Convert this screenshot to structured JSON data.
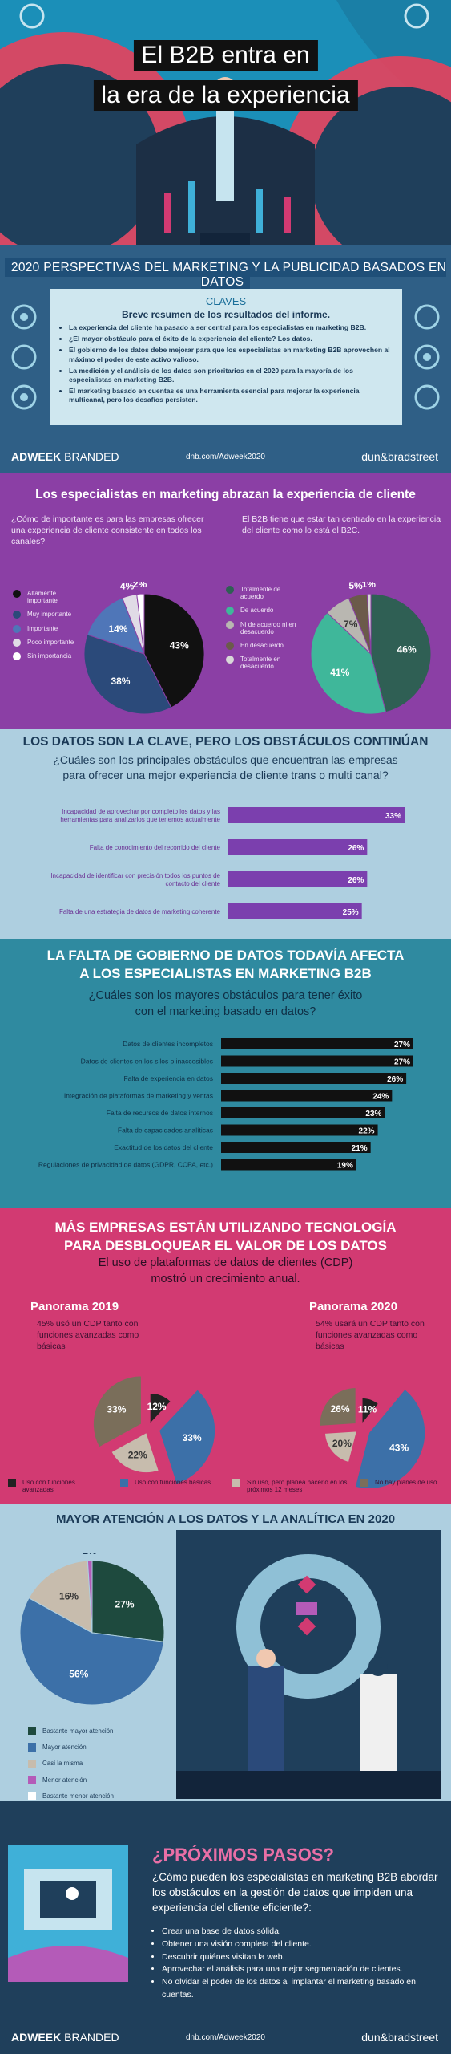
{
  "hero": {
    "title_line1": "El B2B entra en",
    "title_line2": "la era de la experiencia"
  },
  "perspectives": {
    "heading": "2020 PERSPECTIVAS DEL MARKETING Y LA PUBLICIDAD BASADOS EN DATOS",
    "claves_title": "CLAVES",
    "claves_subtitle": "Breve resumen de los resultados del informe.",
    "bullets": [
      "La experiencia del cliente ha pasado a ser central para los especialistas en marketing B2B.",
      "¿El mayor obstáculo para el éxito de la experiencia del cliente? Los datos.",
      "El gobierno de los datos debe mejorar para que los especialistas en marketing B2B aprovechen al máximo el poder de este activo valioso.",
      "La medición y el análisis de los datos son prioritarios en el 2020 para la mayoría de los especialistas en marketing B2B.",
      "El marketing basado en cuentas es una herramienta esencial para mejorar la experiencia multicanal, pero los desafíos persisten."
    ]
  },
  "brand": {
    "adweek_bold": "ADWEEK",
    "adweek_light": "BRANDED",
    "url": "dnb.com/Adweek2020",
    "dnb": "dun&bradstreet"
  },
  "experience": {
    "heading": "Los especialistas en marketing abrazan la experiencia de cliente",
    "q1": "¿Cómo de importante es para las empresas ofrecer una experiencia de cliente consistente en todos los canales?",
    "q2": "El B2B tiene que estar tan centrado en la experiencia del cliente como lo está el B2C."
  },
  "obstacles": {
    "heading": "LOS DATOS SON LA CLAVE, PERO LOS OBSTÁCULOS CONTINÚAN",
    "sub_line1": "¿Cuáles son los principales obstáculos que encuentran las empresas",
    "sub_line2": "para ofrecer una mejor experiencia de cliente trans o multi canal?"
  },
  "governance": {
    "heading_line1": "LA FALTA DE GOBIERNO DE DATOS TODAVÍA AFECTA",
    "heading_line2": "A LOS ESPECIALISTAS EN MARKETING B2B",
    "sub_line1": "¿Cuáles son los mayores obstáculos para tener éxito",
    "sub_line2": "con el marketing basado en datos?"
  },
  "cdp": {
    "heading_line1": "MÁS EMPRESAS ESTÁN UTILIZANDO TECNOLOGÍA",
    "heading_line2": "PARA DESBLOQUEAR EL VALOR DE LOS DATOS",
    "sub_line1": "El uso de plataformas de datos de clientes (CDP)",
    "sub_line2": "mostró un crecimiento anual.",
    "p2019_title": "Panorama 2019",
    "p2019_desc": "45% usó un CDP tanto con funciones avanzadas como básicas",
    "p2020_title": "Panorama 2020",
    "p2020_desc": "54% usará un CDP tanto con funciones avanzadas como básicas"
  },
  "attention": {
    "heading": "MAYOR ATENCIÓN A LOS DATOS Y LA ANALÍTICA EN 2020"
  },
  "next": {
    "heading": "¿PRÓXIMOS PASOS?",
    "question": "¿Cómo pueden los especialistas en marketing B2B abordar los obstáculos en la gestión de datos que impiden una experiencia del cliente eficiente?:",
    "steps": [
      "Crear una base de datos sólida.",
      "Obtener una visión completa del cliente.",
      "Descubrir quiénes visitan la web.",
      "Aprovechar el análisis para una mejor segmentación de clientes.",
      "No olvidar el poder de los datos al implantar el marketing basado en cuentas."
    ]
  },
  "chart_data": [
    {
      "type": "pie",
      "id": "importance",
      "labels": [
        "Altamente importante",
        "Muy importante",
        "Importante",
        "Poco importante",
        "Sin importancia"
      ],
      "values": [
        43,
        38,
        14,
        4,
        2
      ],
      "colors": [
        "#111111",
        "#2b4a7a",
        "#4f76b8",
        "#e0dbe6",
        "#ffffff"
      ]
    },
    {
      "type": "pie",
      "id": "b2b_vs_b2c",
      "labels": [
        "Totalmente de acuerdo",
        "De acuerdo",
        "Ni de acuerdo ni en desacuerdo",
        "En desacuerdo",
        "Totalmente en desacuerdo"
      ],
      "values": [
        46,
        41,
        7,
        5,
        1
      ],
      "colors": [
        "#2f5f54",
        "#3fb79a",
        "#b9b7b1",
        "#6b5a4a",
        "#d8d8d8"
      ]
    },
    {
      "type": "bar",
      "id": "cx_obstacles",
      "categories": [
        "Incapacidad de aprovechar por completo los datos y las herramientas para analizarlos que tenemos actualmente",
        "Falta de conocimiento del recorrido del cliente",
        "Incapacidad de identificar con precisión todos los puntos de contacto del cliente",
        "Falta de una estrategia de datos de marketing coherente"
      ],
      "values": [
        33,
        26,
        26,
        25
      ],
      "value_labels": [
        "33%",
        "26%",
        "26%",
        "25%"
      ],
      "color": "#7b3fae"
    },
    {
      "type": "bar",
      "id": "data_obstacles",
      "categories": [
        "Datos de clientes incompletos",
        "Datos de clientes en los silos o inaccesibles",
        "Falta de experiencia en datos",
        "Integración de plataformas de marketing y ventas",
        "Falta de recursos de datos internos",
        "Falta de capacidades analíticas",
        "Exactitud de los datos del cliente",
        "Regulaciones de privacidad de datos (GDPR, CCPA, etc.)"
      ],
      "values": [
        27,
        27,
        26,
        24,
        23,
        22,
        21,
        19
      ],
      "value_labels": [
        "27%",
        "27%",
        "26%",
        "24%",
        "23%",
        "22%",
        "21%",
        "19%"
      ],
      "color": "#111111"
    },
    {
      "type": "pie",
      "id": "cdp_2019",
      "labels": [
        "Uso con funciones avanzadas",
        "Uso con funciones básicas",
        "Sin uso, pero planea hacerlo en los próximos 12 meses",
        "No hay planes de uso"
      ],
      "values": [
        12,
        33,
        22,
        33
      ],
      "colors": [
        "#222222",
        "#3c70a8",
        "#c7bcad",
        "#7a6e5a"
      ]
    },
    {
      "type": "pie",
      "id": "cdp_2020",
      "labels": [
        "Uso con funciones avanzadas",
        "Uso con funciones básicas",
        "Sin uso, pero planea hacerlo en los próximos 12 meses",
        "No hay planes de uso"
      ],
      "values": [
        11,
        43,
        20,
        26
      ],
      "colors": [
        "#222222",
        "#3c70a8",
        "#c7bcad",
        "#7a6e5a"
      ]
    },
    {
      "type": "pie",
      "id": "attention_2020",
      "labels": [
        "Bastante mayor atención",
        "Mayor atención",
        "Casi la misma",
        "Menor atención",
        "Bastante menor atención"
      ],
      "values": [
        27,
        56,
        16,
        1,
        0
      ],
      "colors": [
        "#1e4a3e",
        "#3c70a8",
        "#c7bcad",
        "#b45bb8",
        "#ffffff"
      ]
    }
  ]
}
